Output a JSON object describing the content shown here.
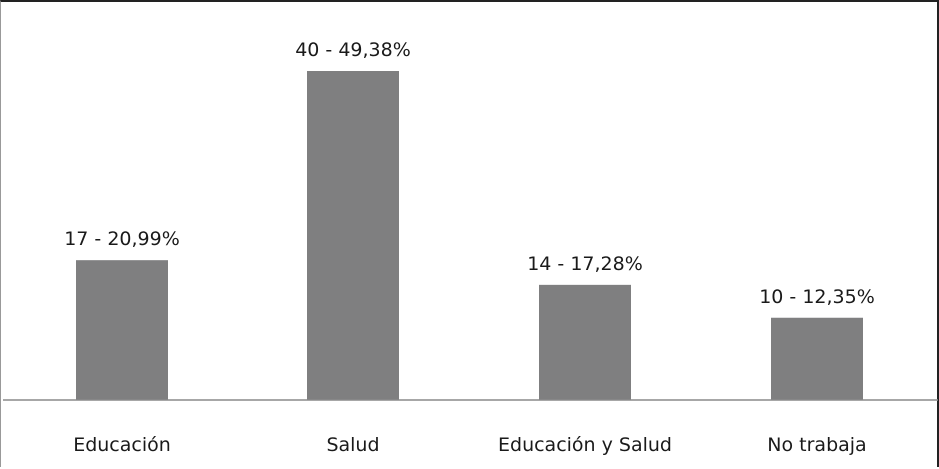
{
  "chart_data": {
    "type": "bar",
    "categories": [
      "Educación",
      "Salud",
      "Educación y Salud",
      "No trabaja"
    ],
    "values": [
      17,
      40,
      14,
      10
    ],
    "data_labels": [
      "17 - 20,99%",
      "40 - 49,38%",
      "14 - 17,28%",
      "10 - 12,35%"
    ],
    "ylim": [
      0,
      40
    ],
    "grid": false,
    "legend": "none",
    "bar_color": "#7f7f80",
    "axis_color": "#8a8a8a"
  }
}
